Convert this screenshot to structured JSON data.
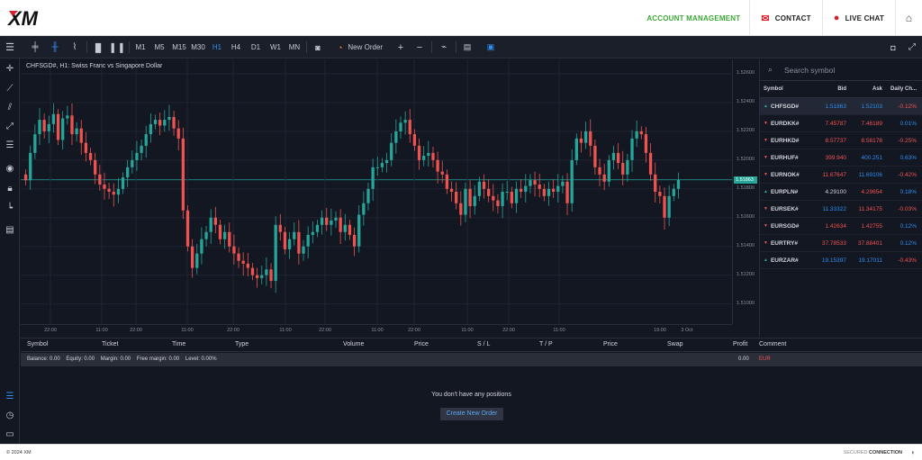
{
  "header": {
    "logo_text": "XM",
    "account_management": "ACCOUNT MANAGEMENT",
    "contact": "CONTACT",
    "live_chat": "LIVE CHAT"
  },
  "toolbar": {
    "timeframes": [
      "M1",
      "M5",
      "M15",
      "M30",
      "H1",
      "H4",
      "D1",
      "W1",
      "MN"
    ],
    "active_timeframe": "H1",
    "new_order": "New Order",
    "zoom_in": "+",
    "zoom_out": "−"
  },
  "chart": {
    "title": "CHFSGD#, H1: Swiss Franc vs Singapore Dollar",
    "current_price": "1.51863"
  },
  "chart_data": {
    "type": "candlestick",
    "symbol": "CHFSGD#",
    "timeframe": "H1",
    "title": "CHFSGD#, H1: Swiss Franc vs Singapore Dollar",
    "ylim": [
      1.5086,
      1.527
    ],
    "y_ticks": [
      "1.52600",
      "1.52400",
      "1.52200",
      "1.52000",
      "1.51800",
      "1.51600",
      "1.51400",
      "1.51200",
      "1.51000"
    ],
    "x_ticks": [
      "22:00",
      "11:00",
      "22:00",
      "11:00",
      "22:00",
      "11:00",
      "22:00",
      "11:00",
      "22:00",
      "11:00",
      "22:00",
      "11:00",
      "19:00",
      "3 Oct"
    ],
    "current_price": 1.51863,
    "closes": [
      1.5186,
      1.5205,
      1.5218,
      1.5228,
      1.522,
      1.5225,
      1.5232,
      1.5214,
      1.5229,
      1.5231,
      1.5218,
      1.5222,
      1.5212,
      1.5205,
      1.52,
      1.519,
      1.5183,
      1.518,
      1.5178,
      1.5176,
      1.518,
      1.5188,
      1.5195,
      1.52,
      1.5205,
      1.521,
      1.5218,
      1.5225,
      1.5228,
      1.5224,
      1.5228,
      1.523,
      1.5222,
      1.5215,
      1.5165,
      1.514,
      1.5125,
      1.5135,
      1.5145,
      1.515,
      1.516,
      1.5155,
      1.5145,
      1.515,
      1.514,
      1.5135,
      1.513,
      1.5128,
      1.5125,
      1.512,
      1.5118,
      1.512,
      1.5124,
      1.5116,
      1.5155,
      1.515,
      1.5138,
      1.5145,
      1.515,
      1.5135,
      1.514,
      1.5148,
      1.515,
      1.5155,
      1.516,
      1.5155,
      1.5158,
      1.516,
      1.515,
      1.5155,
      1.5148,
      1.514,
      1.5162,
      1.517,
      1.518,
      1.5195,
      1.5195,
      1.5198,
      1.52,
      1.5212,
      1.522,
      1.5226,
      1.5228,
      1.5218,
      1.521,
      1.52,
      1.5203,
      1.5205,
      1.52,
      1.5192,
      1.519,
      1.518,
      1.5178,
      1.517,
      1.5162,
      1.518,
      1.5168,
      1.5175,
      1.5185,
      1.518,
      1.5175,
      1.5172,
      1.5168,
      1.5178,
      1.5178,
      1.517,
      1.518,
      1.5178,
      1.5182,
      1.5186,
      1.5183,
      1.518,
      1.5175,
      1.518,
      1.5178,
      1.5182,
      1.5185,
      1.517,
      1.52,
      1.5215,
      1.5212,
      1.522,
      1.521,
      1.5195,
      1.519,
      1.5185,
      1.52,
      1.5205,
      1.5198,
      1.519,
      1.52,
      1.5215,
      1.522,
      1.5218,
      1.5205,
      1.519,
      1.5178,
      1.5175,
      1.516,
      1.5175,
      1.518,
      1.51863
    ]
  },
  "watchlist": {
    "search_placeholder": "Search symbol",
    "columns": [
      "Symbol",
      "Bid",
      "Ask",
      "Daily Ch..."
    ],
    "rows": [
      {
        "symbol": "CHFSGD#",
        "dir": "up",
        "bid": "1.51863",
        "ask": "1.52103",
        "change": "-0.12%",
        "bid_color": "bl",
        "ask_color": "bl",
        "change_color": "dn"
      },
      {
        "symbol": "EURDKK#",
        "dir": "dn",
        "bid": "7.45787",
        "ask": "7.46189",
        "change": "0.01%",
        "bid_color": "dn",
        "ask_color": "dn",
        "change_color": "bl"
      },
      {
        "symbol": "EURHKD#",
        "dir": "dn",
        "bid": "8.57737",
        "ask": "8.58178",
        "change": "-0.25%",
        "bid_color": "dn",
        "ask_color": "dn",
        "change_color": "dn"
      },
      {
        "symbol": "EURHUF#",
        "dir": "dn",
        "bid": "399.940",
        "ask": "400.251",
        "change": "0.63%",
        "bid_color": "dn",
        "ask_color": "bl",
        "change_color": "bl"
      },
      {
        "symbol": "EURNOK#",
        "dir": "dn",
        "bid": "11.67647",
        "ask": "11.69106",
        "change": "-0.42%",
        "bid_color": "dn",
        "ask_color": "bl",
        "change_color": "dn"
      },
      {
        "symbol": "EURPLN#",
        "dir": "up",
        "bid": "4.29100",
        "ask": "4.29654",
        "change": "0.18%",
        "bid_color": "wh-c",
        "ask_color": "dn",
        "change_color": "bl"
      },
      {
        "symbol": "EURSEK#",
        "dir": "dn",
        "bid": "11.33322",
        "ask": "11.34175",
        "change": "-0.03%",
        "bid_color": "bl",
        "ask_color": "dn",
        "change_color": "dn"
      },
      {
        "symbol": "EURSGD#",
        "dir": "dn",
        "bid": "1.42634",
        "ask": "1.42755",
        "change": "0.12%",
        "bid_color": "dn",
        "ask_color": "dn",
        "change_color": "bl"
      },
      {
        "symbol": "EURTRY#",
        "dir": "dn",
        "bid": "37.78533",
        "ask": "37.88401",
        "change": "0.12%",
        "bid_color": "dn",
        "ask_color": "dn",
        "change_color": "bl"
      },
      {
        "symbol": "EURZAR#",
        "dir": "up",
        "bid": "19.15397",
        "ask": "19.17011",
        "change": "-0.43%",
        "bid_color": "bl",
        "ask_color": "bl",
        "change_color": "dn"
      }
    ]
  },
  "positions": {
    "columns": [
      "Symbol",
      "Ticket",
      "Time",
      "Type",
      "Volume",
      "Price",
      "S / L",
      "T / P",
      "Price",
      "Swap",
      "Profit",
      "Comment"
    ],
    "balance": {
      "balance_label": "Balance:",
      "balance": "0.00",
      "equity_label": "Equity:",
      "equity": "0.00",
      "margin_label": "Margin:",
      "margin": "0.00",
      "free_margin_label": "Free margin:",
      "free_margin": "0.00",
      "level_label": "Level:",
      "level": "0.00%",
      "profit": "0.00",
      "currency": "EUR"
    },
    "empty_message": "You don't have any positions",
    "create_order": "Create New Order"
  },
  "footer": {
    "copyright": "© 2024 XM",
    "secured": "SECURED",
    "connection": "CONNECTION"
  },
  "colors": {
    "accent_green": "#3aa935",
    "brand_red": "#d51f2a",
    "candle_up": "#26a69a",
    "candle_down": "#ef5350",
    "selected_blue": "#2f8ded"
  }
}
